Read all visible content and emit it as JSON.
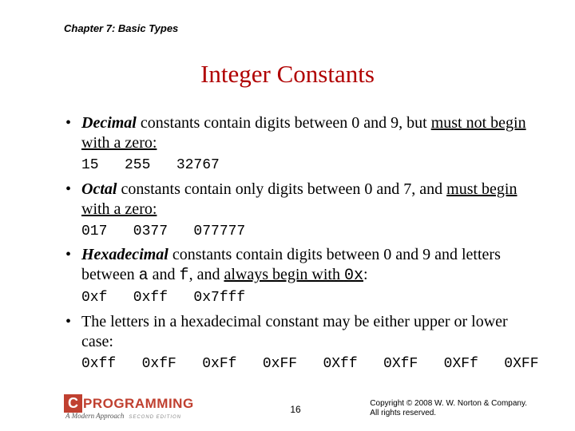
{
  "header": "Chapter 7: Basic Types",
  "title": "Integer Constants",
  "bullets": {
    "b1": {
      "pre": "Decimal",
      "mid": " constants contain digits between 0 and 9, but ",
      "ul": "must not begin with a zero:",
      "post": ""
    },
    "b2": {
      "pre": "Octal",
      "mid": " constants contain only digits between 0 and 7, and ",
      "ul": "must begin with a zero:",
      "post": ""
    },
    "b3": {
      "pre": "Hexadecimal",
      "mid": " constants contain digits between 0 and 9 and letters between ",
      "m1": "a",
      "mid2": " and ",
      "m2": "f",
      "mid3": ", and ",
      "ul": "always begin with ",
      "ulm": "0x",
      "post": ":"
    },
    "b4": "The letters in a hexadecimal constant may be either upper or lower case:"
  },
  "code": {
    "c1": "15   255   32767",
    "c2": "017   0377   077777",
    "c3": "0xf   0xff   0x7fff",
    "c4": "0xff   0xfF   0xFf   0xFF   0Xff   0XfF   0XFf   0XFF"
  },
  "footer": {
    "logo_c": "C",
    "logo_prog": "PROGRAMMING",
    "logo_sub": "A Modern Approach",
    "logo_ed": "SECOND EDITION",
    "page": "16",
    "copy1": "Copyright © 2008 W. W. Norton & Company.",
    "copy2": "All rights reserved."
  },
  "colors": {
    "title": "#b00000",
    "logo": "#c04030"
  }
}
